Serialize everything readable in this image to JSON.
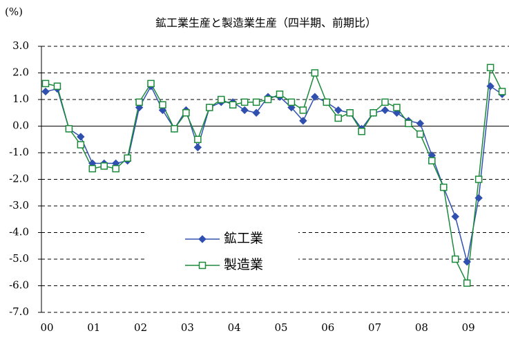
{
  "chart_data": {
    "type": "line",
    "title": "鉱工業生産と製造業生産（四半期、前期比）",
    "y_label": "(%)",
    "categories": [
      "00",
      null,
      null,
      null,
      "01",
      null,
      null,
      null,
      "02",
      null,
      null,
      null,
      "03",
      null,
      null,
      null,
      "04",
      null,
      null,
      null,
      "05",
      null,
      null,
      null,
      "06",
      null,
      null,
      null,
      "07",
      null,
      null,
      null,
      "08",
      null,
      null,
      null,
      "09",
      null,
      null,
      null
    ],
    "series": [
      {
        "name": "鉱工業",
        "color": "#3050b0",
        "marker": "diamond",
        "values": [
          1.3,
          1.4,
          -0.1,
          -0.4,
          -1.4,
          -1.4,
          -1.4,
          -1.3,
          0.7,
          1.5,
          0.6,
          -0.1,
          0.6,
          -0.8,
          0.7,
          0.9,
          0.9,
          0.6,
          0.5,
          1.1,
          1.1,
          0.7,
          0.2,
          1.1,
          0.9,
          0.6,
          0.5,
          -0.1,
          0.5,
          0.6,
          0.5,
          0.2,
          0.1,
          -1.1,
          -2.3,
          -3.4,
          -5.1,
          -2.7,
          1.5,
          1.2
        ]
      },
      {
        "name": "製造業",
        "color": "#1a8a3a",
        "marker": "square",
        "values": [
          1.6,
          1.5,
          -0.1,
          -0.7,
          -1.6,
          -1.5,
          -1.6,
          -1.2,
          0.9,
          1.6,
          0.8,
          -0.1,
          0.5,
          -0.5,
          0.7,
          1.0,
          0.8,
          0.9,
          0.9,
          1.0,
          1.2,
          0.9,
          0.6,
          2.0,
          0.9,
          0.3,
          0.5,
          -0.2,
          0.5,
          0.9,
          0.7,
          0.1,
          -0.3,
          -1.3,
          -2.3,
          -5.0,
          -5.9,
          -2.0,
          2.2,
          1.3
        ]
      }
    ],
    "ylim": [
      -7,
      3
    ],
    "yticks": [
      {
        "value": 3,
        "label": "3.0"
      },
      {
        "value": 2,
        "label": "2.0"
      },
      {
        "value": 1,
        "label": "1.0"
      },
      {
        "value": 0,
        "label": "0.0"
      },
      {
        "value": -1,
        "label": "-1.0"
      },
      {
        "value": -2,
        "label": "-2.0"
      },
      {
        "value": -3,
        "label": "-3.0"
      },
      {
        "value": -4,
        "label": "-4.0"
      },
      {
        "value": -5,
        "label": "-5.0"
      },
      {
        "value": -6,
        "label": "-6.0"
      },
      {
        "value": -7,
        "label": "-7.0"
      }
    ],
    "grid": true
  }
}
